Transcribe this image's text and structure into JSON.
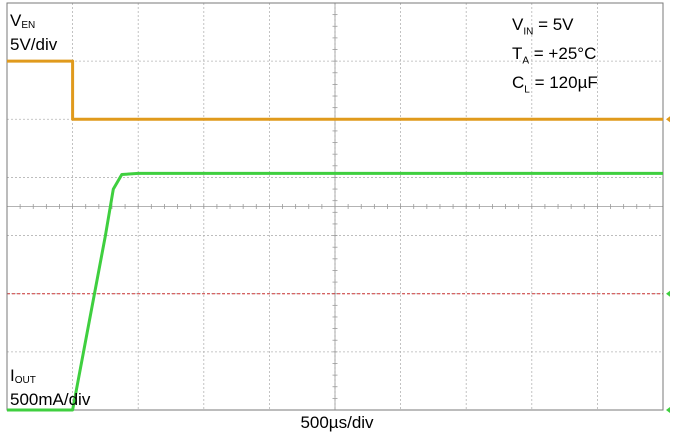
{
  "channels": {
    "ven": {
      "name": "V",
      "sub": "EN",
      "scale": "5V/div",
      "color": "#e09a1c"
    },
    "iout": {
      "name": "I",
      "sub": "OUT",
      "scale": "500mA/div",
      "color": "#3fcf3f"
    }
  },
  "conditions": [
    {
      "sym": "V",
      "sub": "IN",
      "val": " = 5V"
    },
    {
      "sym": "T",
      "sub": "A",
      "val": " = +25°C"
    },
    {
      "sym": "C",
      "sub": "L",
      "val": " = 120µF"
    }
  ],
  "xscale": "500µs/div",
  "chart_data": {
    "type": "line",
    "grid": true,
    "divisions": {
      "x": 10,
      "y": 7
    },
    "x_unit": "div",
    "y_unit": "div",
    "xlim": [
      0,
      10
    ],
    "ylim": [
      0,
      7
    ],
    "reference_level_color": "#cc3333",
    "reference_level_div": 2,
    "series": [
      {
        "name": "V_EN",
        "color": "#e09a1c",
        "x": [
          0,
          1.0,
          1.0,
          10
        ],
        "y": [
          6.0,
          6.0,
          5.0,
          5.0
        ]
      },
      {
        "name": "I_OUT",
        "color": "#3fcf3f",
        "x": [
          0,
          1.0,
          1.5,
          1.62,
          1.75,
          2.0,
          10
        ],
        "y": [
          0.0,
          0.0,
          3.0,
          3.8,
          4.05,
          4.07,
          4.07
        ]
      }
    ]
  }
}
